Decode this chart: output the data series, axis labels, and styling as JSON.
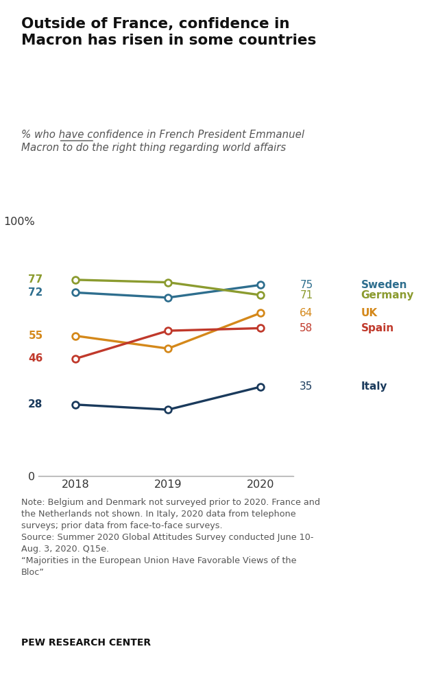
{
  "title_line1": "Outside of France, confidence in",
  "title_line2": "Macron has risen in some countries",
  "subtitle_prefix": "% who have ",
  "subtitle_underlined": "confidence",
  "subtitle_suffix": " in French President Emmanuel\nMacron to do the right thing regarding world affairs",
  "years": [
    2018,
    2019,
    2020
  ],
  "series": [
    {
      "country": "Sweden",
      "color": "#2E6E8E",
      "values": [
        72,
        70,
        75
      ],
      "val_2020": 75,
      "val_2018": 72
    },
    {
      "country": "Germany",
      "color": "#8B9B2F",
      "values": [
        77,
        76,
        71
      ],
      "val_2020": 71,
      "val_2018": 77
    },
    {
      "country": "UK",
      "color": "#D4881A",
      "values": [
        55,
        50,
        64
      ],
      "val_2020": 64,
      "val_2018": 55
    },
    {
      "country": "Spain",
      "color": "#C0392B",
      "values": [
        46,
        57,
        58
      ],
      "val_2020": 58,
      "val_2018": 46
    },
    {
      "country": "Italy",
      "color": "#1A3A5C",
      "values": [
        28,
        26,
        35
      ],
      "val_2020": 35,
      "val_2018": 28
    }
  ],
  "note_text": "Note: Belgium and Denmark not surveyed prior to 2020. France and\nthe Netherlands not shown. In Italy, 2020 data from telephone\nsurveys; prior data from face-to-face surveys.\nSource: Summer 2020 Global Attitudes Survey conducted June 10-\nAug. 3, 2020. Q15e.\n“Majorities in the European Union Have Favorable Views of the\nBloc”",
  "source_text": "PEW RESEARCH CENTER",
  "bg_color": "#ffffff",
  "marker_size": 7,
  "linewidth": 2.4
}
